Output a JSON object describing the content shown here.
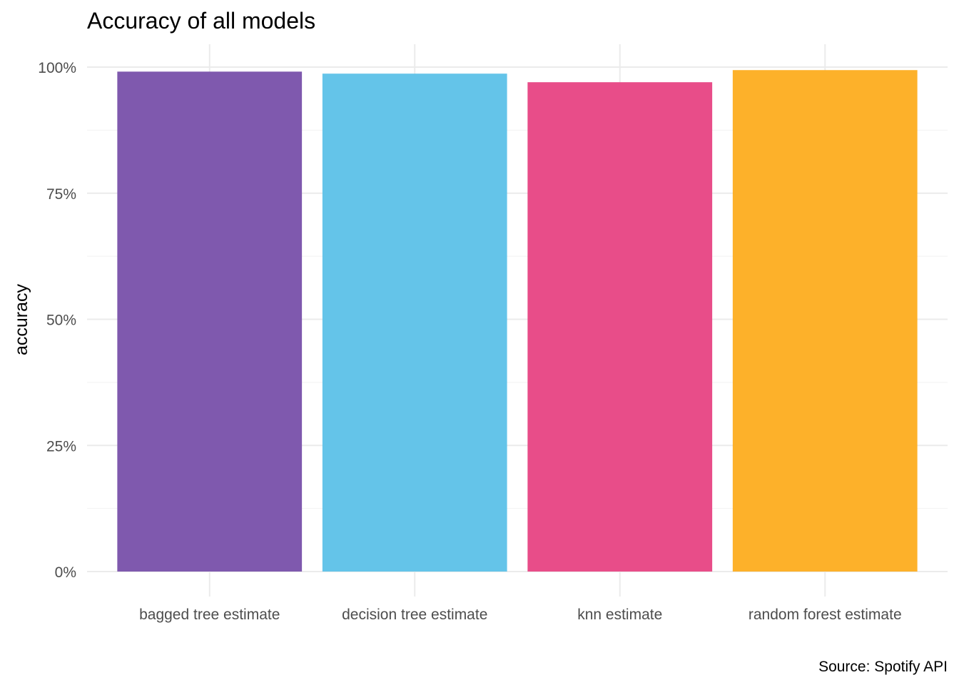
{
  "chart_data": {
    "type": "bar",
    "title": "Accuracy of all models",
    "xlabel": "",
    "ylabel": "accuracy",
    "caption": "Source: Spotify API",
    "categories": [
      "bagged tree estimate",
      "decision tree estimate",
      "knn estimate",
      "random forest estimate"
    ],
    "values": [
      0.991,
      0.987,
      0.97,
      0.994
    ],
    "colors": [
      "#7f59ae",
      "#64c4e9",
      "#e84d89",
      "#fdb12a"
    ],
    "ylim": [
      0,
      1.0
    ],
    "yticks": [
      0,
      0.25,
      0.5,
      0.75,
      1.0
    ],
    "ytick_labels": [
      "0%",
      "25%",
      "50%",
      "75%",
      "100%"
    ],
    "grid": true,
    "legend": "none"
  }
}
